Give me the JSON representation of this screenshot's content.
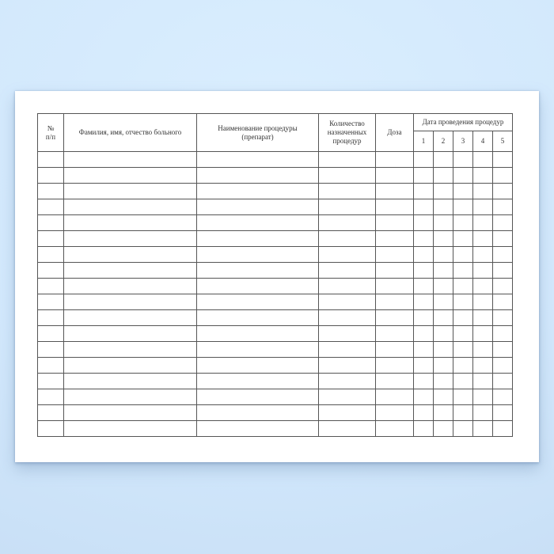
{
  "colors": {
    "background_top": "#daeefe",
    "background_edge": "#c7def5",
    "paper": "#ffffff",
    "table_border": "#555555",
    "text": "#333333"
  },
  "table": {
    "headers": {
      "number_line1": "№",
      "number_line2": "п/п",
      "patient_name": "Фамилия, имя, отчество больного",
      "procedure_name_line1": "Наименование процедуры",
      "procedure_name_line2": "(препарат)",
      "procedures_count": "Количество назначенных процедур",
      "dose": "Доза",
      "date_group": "Дата проведения процедур",
      "date_columns": [
        "1",
        "2",
        "3",
        "4",
        "5"
      ]
    },
    "body_row_count": 18
  }
}
